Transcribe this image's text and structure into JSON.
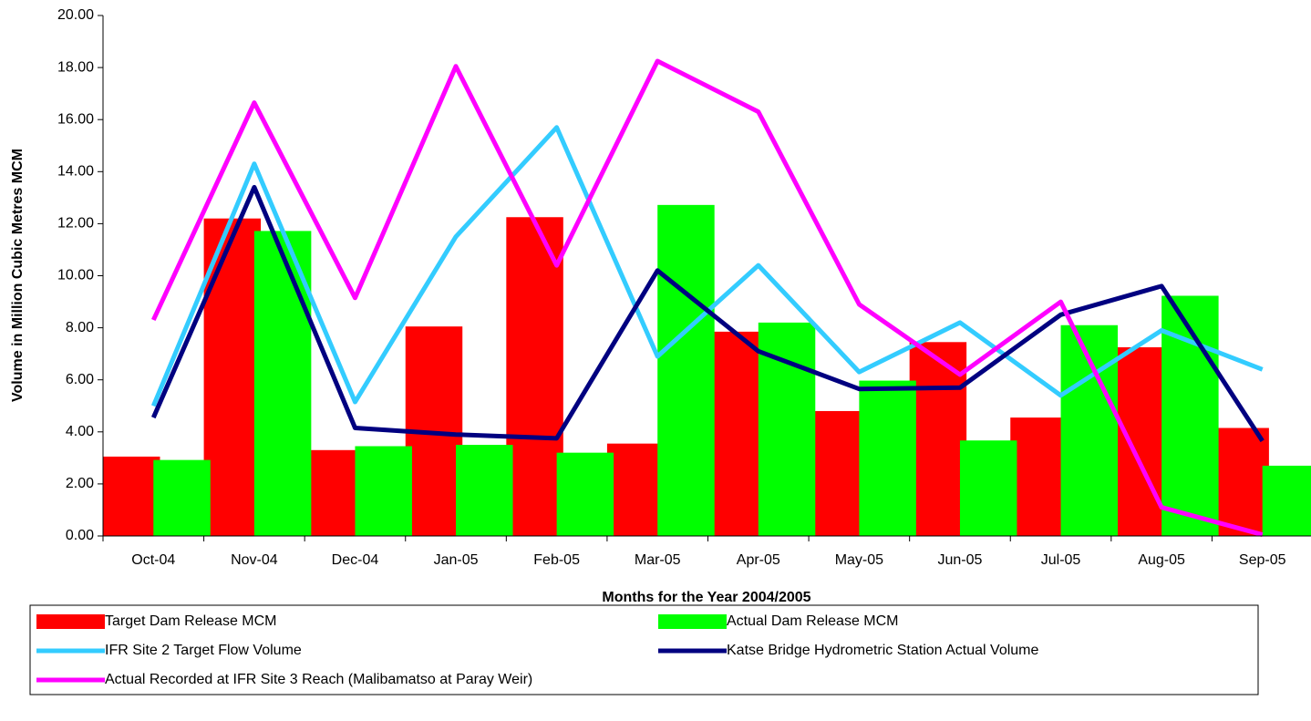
{
  "chart_data": {
    "type": "bar",
    "x_label": "Months for the Year 2004/2005",
    "y_label": "Volume in Million Cubic Metres MCM",
    "categories": [
      "Oct-04",
      "Nov-04",
      "Dec-04",
      "Jan-05",
      "Feb-05",
      "Mar-05",
      "Apr-05",
      "May-05",
      "Jun-05",
      "Jul-05",
      "Aug-05",
      "Sep-05"
    ],
    "ylim": [
      0,
      20
    ],
    "yticks": [
      {
        "value": 0,
        "label": "0.00"
      },
      {
        "value": 2,
        "label": "2.00"
      },
      {
        "value": 4,
        "label": "4.00"
      },
      {
        "value": 6,
        "label": "6.00"
      },
      {
        "value": 8,
        "label": "8.00"
      },
      {
        "value": 10,
        "label": "10.00"
      },
      {
        "value": 12,
        "label": "12.00"
      },
      {
        "value": 14,
        "label": "14.00"
      },
      {
        "value": 16,
        "label": "16.00"
      },
      {
        "value": 18,
        "label": "18.00"
      },
      {
        "value": 20,
        "label": "20.00"
      }
    ],
    "series": [
      {
        "name": "Target Dam Release MCM",
        "type": "bar",
        "color": "#ff0000",
        "values": [
          3.05,
          12.2,
          3.3,
          8.05,
          12.25,
          3.55,
          7.85,
          4.8,
          7.45,
          4.55,
          7.25,
          4.15
        ]
      },
      {
        "name": "Actual Dam Release MCM",
        "type": "bar",
        "color": "#00ff00",
        "values": [
          2.92,
          11.72,
          3.45,
          3.5,
          3.2,
          12.72,
          8.2,
          5.97,
          3.67,
          8.1,
          9.23,
          2.7
        ]
      },
      {
        "name": "IFR Site 2 Target Flow Volume",
        "type": "line",
        "color": "#33ccff",
        "values": [
          5.0,
          14.3,
          5.15,
          11.5,
          15.7,
          6.9,
          10.4,
          6.3,
          8.2,
          5.4,
          7.9,
          6.4
        ]
      },
      {
        "name": "Katse Bridge Hydrometric Station Actual Volume",
        "type": "line",
        "color": "#000080",
        "values": [
          4.55,
          13.4,
          4.15,
          3.9,
          3.75,
          10.2,
          7.1,
          5.65,
          5.7,
          8.5,
          9.6,
          3.65
        ]
      },
      {
        "name": "Actual Recorded at IFR Site 3 Reach (Malibamatso at Paray Weir)",
        "type": "line",
        "color": "#ff00ff",
        "values": [
          8.3,
          16.65,
          9.15,
          18.05,
          10.4,
          18.25,
          16.3,
          8.9,
          6.2,
          9.0,
          1.1,
          0.05
        ]
      }
    ]
  }
}
